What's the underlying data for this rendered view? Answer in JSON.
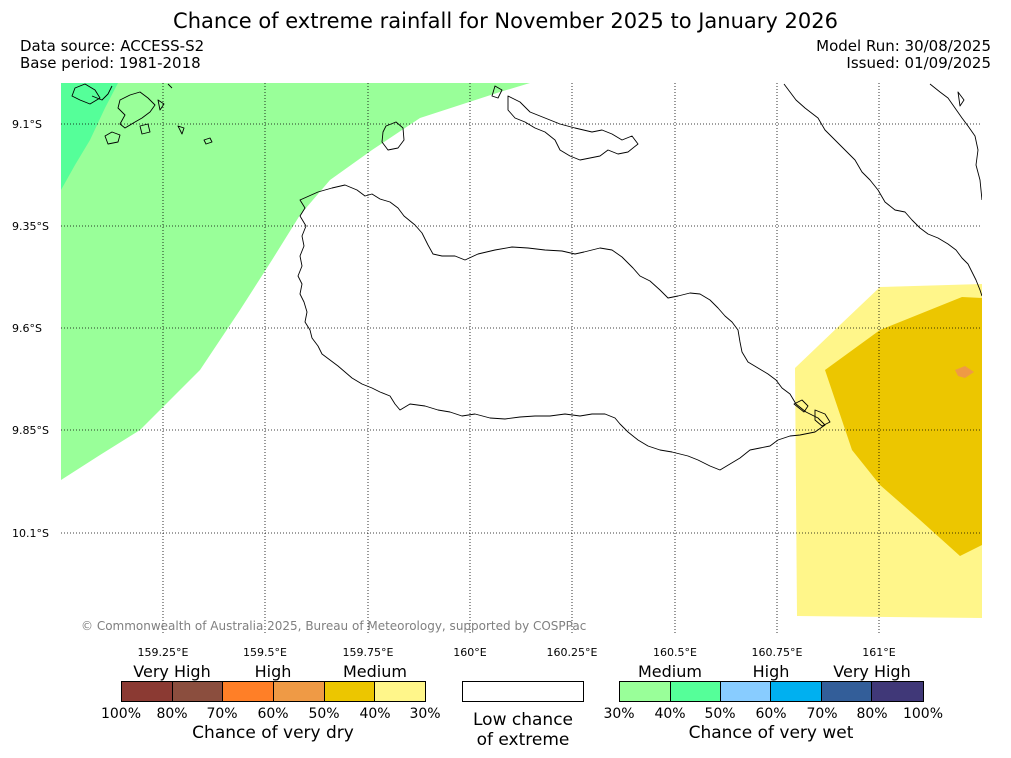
{
  "header": {
    "title": "Chance of extreme rainfall for November 2025 to January 2026",
    "data_source": "Data source: ACCESS-S2",
    "base_period": "Base period: 1981-2018",
    "model_run": "Model Run: 30/08/2025",
    "issued": "Issued: 01/09/2025"
  },
  "map": {
    "lat_labels": [
      "9.1°S",
      "9.35°S",
      "9.6°S",
      "9.85°S",
      "10.1°S"
    ],
    "lon_labels": [
      "159.25°E",
      "159.5°E",
      "159.75°E",
      "160°E",
      "160.25°E",
      "160.5°E",
      "160.75°E",
      "161°E"
    ],
    "copyright": "© Commonwealth of Australia 2025, Bureau of Meteorology, supported by COSPPac",
    "grid_line_color": "#000000",
    "coastline_color": "#000000"
  },
  "legend": {
    "dry": {
      "categories": [
        "Very High",
        "High",
        "Medium"
      ],
      "colors": [
        "#8b3a33",
        "#8b4e3e",
        "#ff7f27",
        "#ef9a45",
        "#ecc600",
        "#fff68a"
      ],
      "ticks": [
        "100%",
        "80%",
        "70%",
        "60%",
        "50%",
        "40%",
        "30%"
      ],
      "title": "Chance of very dry"
    },
    "neutral": {
      "label_line1": "Low chance",
      "label_line2": "of extreme"
    },
    "wet": {
      "categories": [
        "Medium",
        "High",
        "Very High"
      ],
      "colors": [
        "#99ff99",
        "#55ff99",
        "#88ccff",
        "#00b0f0",
        "#335e99",
        "#403878"
      ],
      "ticks": [
        "30%",
        "40%",
        "50%",
        "60%",
        "70%",
        "80%",
        "100%"
      ],
      "title": "Chance of very wet"
    }
  }
}
